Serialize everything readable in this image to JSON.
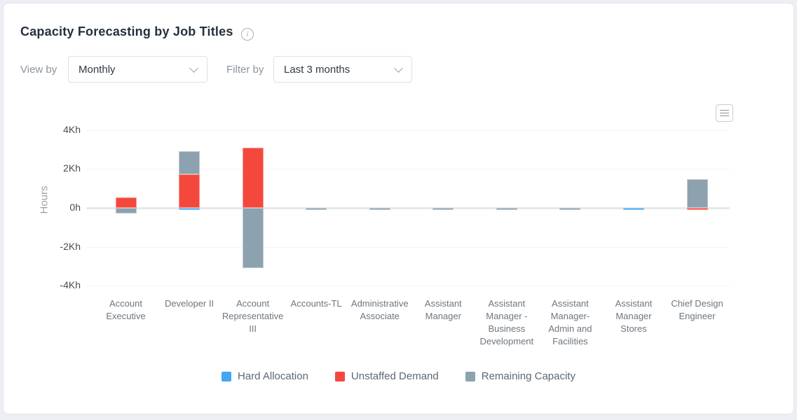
{
  "header": {
    "title": "Capacity Forecasting by Job Titles",
    "info_icon_glyph": "i"
  },
  "controls": {
    "view_by": {
      "label": "View by",
      "value": "Monthly"
    },
    "filter_by": {
      "label": "Filter by",
      "value": "Last 3 months"
    }
  },
  "chart_menu": {
    "icon": "hamburger-menu"
  },
  "chart_data": {
    "type": "bar",
    "stacked": true,
    "ylabel": "Hours",
    "ylim": [
      -4000,
      4000
    ],
    "grid": true,
    "legend_position": "bottom",
    "yticks": [
      {
        "label": "4Kh",
        "value": 4000
      },
      {
        "label": "2Kh",
        "value": 2000
      },
      {
        "label": "0h",
        "value": 0
      },
      {
        "label": "-2Kh",
        "value": -2000
      },
      {
        "label": "-4Kh",
        "value": -4000
      }
    ],
    "categories": [
      "Account Executive",
      "Developer II",
      "Account Representative III",
      "Accounts-TL",
      "Administrative Associate",
      "Assistant Manager",
      "Assistant Manager - Business Development",
      "Assistant Manager- Admin and Facilities",
      "Assistant Manager Stores",
      "Chief Design Engineer"
    ],
    "series": [
      {
        "name": "Hard Allocation",
        "color": "#42A5F5",
        "values": [
          0,
          -70,
          0,
          0,
          0,
          0,
          0,
          0,
          -50,
          0
        ]
      },
      {
        "name": "Unstaffed Demand",
        "color": "#F4483D",
        "values": [
          550,
          1720,
          3080,
          0,
          0,
          0,
          0,
          0,
          0,
          -50
        ]
      },
      {
        "name": "Remaining Capacity",
        "color": "#8CA2AE",
        "values": [
          -280,
          1200,
          -3090,
          -60,
          -60,
          -60,
          -60,
          -60,
          0,
          1460
        ]
      }
    ]
  }
}
